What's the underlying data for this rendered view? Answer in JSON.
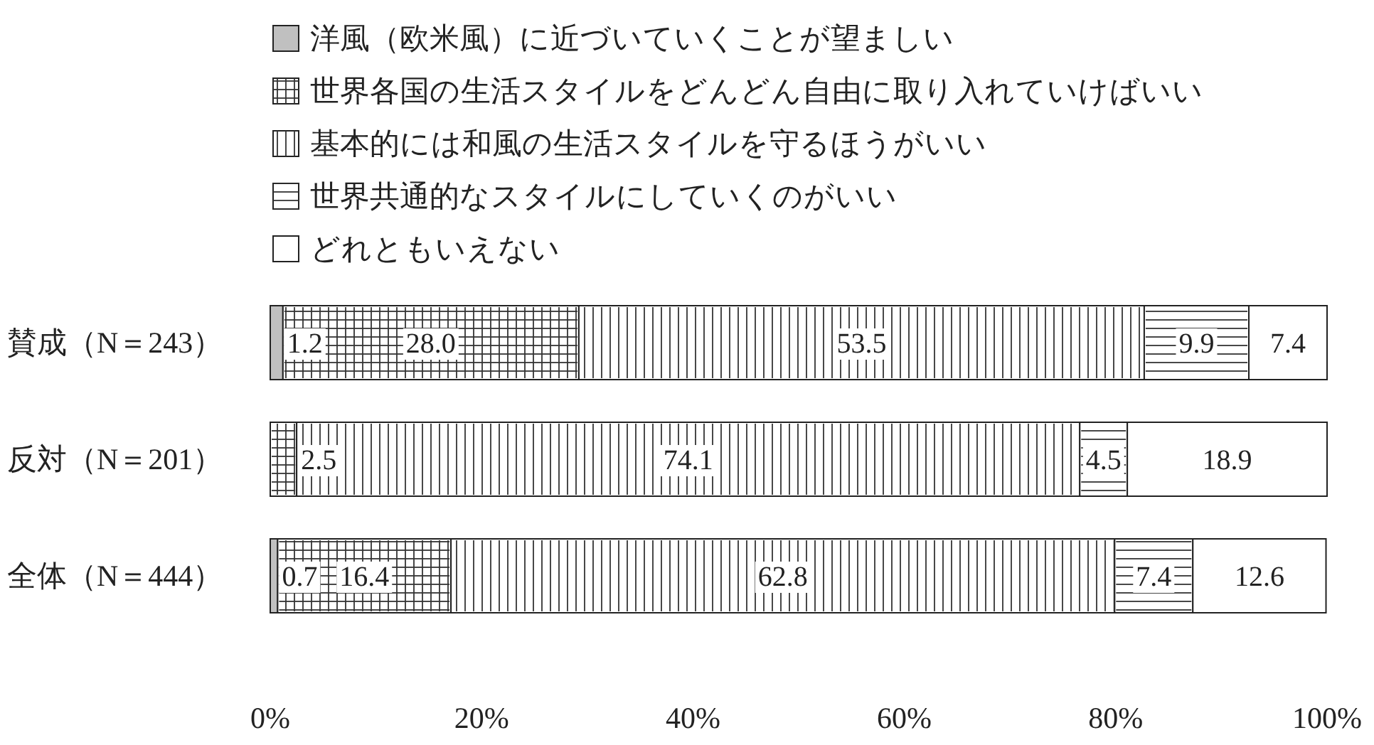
{
  "chart_data": {
    "type": "bar",
    "orientation": "horizontal",
    "stacked": true,
    "legend": "top left",
    "grid": false,
    "categories": [
      "賛成（N＝243）",
      "反対（N＝201）",
      "全体（N＝444）"
    ],
    "xlim": [
      0,
      100
    ],
    "xticks": [
      {
        "value": 0,
        "label": "0%"
      },
      {
        "value": 20,
        "label": "20%"
      },
      {
        "value": 40,
        "label": "40%"
      },
      {
        "value": 60,
        "label": "60%"
      },
      {
        "value": 80,
        "label": "80%"
      },
      {
        "value": 100,
        "label": "100%"
      }
    ],
    "series": [
      {
        "name": "洋風（欧米風）に近づいていくことが望ましい",
        "color": "#c0c0c0",
        "values": [
          1.2,
          0,
          0.7
        ],
        "value_labels": [
          "1.2",
          null,
          "0.7"
        ]
      },
      {
        "name": "世界各国の生活スタイルをどんどん自由に取り入れていけばいい",
        "color": "#ffffff",
        "values": [
          28.0,
          2.5,
          16.4
        ],
        "value_labels": [
          "28.0",
          "2.5",
          "16.4"
        ]
      },
      {
        "name": "基本的には和風の生活スタイルを守るほうがいい",
        "color": "#ffffff",
        "values": [
          53.5,
          74.1,
          62.8
        ],
        "value_labels": [
          "53.5",
          "74.1",
          "62.8"
        ]
      },
      {
        "name": "世界共通的なスタイルにしていくのがいい",
        "color": "#ffffff",
        "values": [
          9.9,
          4.5,
          7.4
        ],
        "value_labels": [
          "9.9",
          "4.5",
          "7.4"
        ]
      },
      {
        "name": "どれともいえない",
        "color": "#ffffff",
        "values": [
          7.4,
          18.9,
          12.6
        ],
        "value_labels": [
          "7.4",
          "18.9",
          "12.6"
        ]
      }
    ]
  }
}
